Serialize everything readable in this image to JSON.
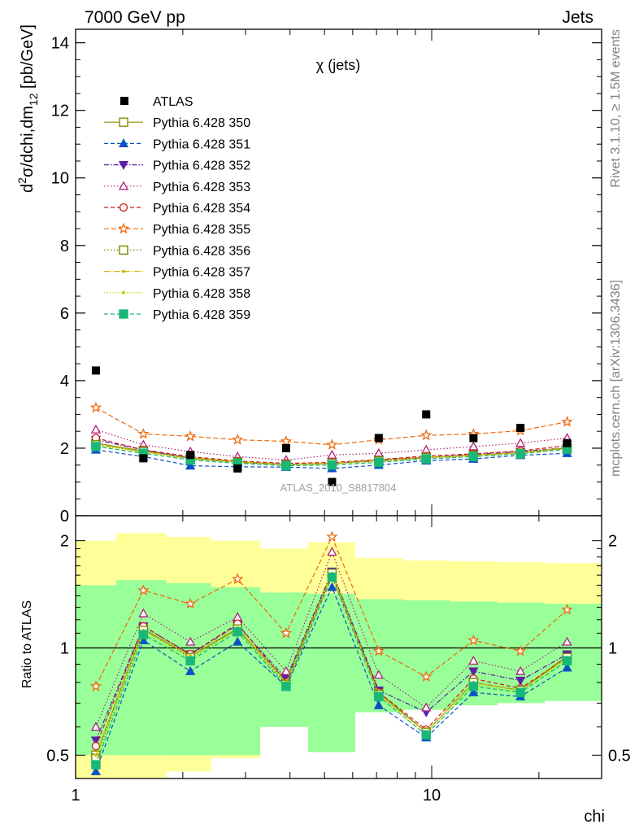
{
  "header": {
    "left": "7000 GeV pp",
    "right": "Jets"
  },
  "side_labels": {
    "rivet": "Rivet 3.1.10, ≥ 1.5M events",
    "mcplots": "mcplots.cern.ch [arXiv:1306.3436]"
  },
  "watermark": "ATLAS_2010_S8817804",
  "chart_data": [
    {
      "type": "scatter",
      "panel": "main",
      "title": "χ (jets)",
      "ylabel_parts": {
        "d": "d",
        "sup": "2",
        "body": "σ/dchi,dm",
        "sub": "12",
        "unit": " [pb/GeV]"
      },
      "x_scale": "log",
      "xlim": [
        1,
        30
      ],
      "ylim": [
        0,
        14.4
      ],
      "yticks": [
        0,
        2,
        4,
        6,
        8,
        10,
        12,
        14
      ],
      "ytick_labels": [
        "0",
        "2",
        "4",
        "6",
        "8",
        "10",
        "12",
        "14"
      ],
      "legend_position": "top-left",
      "x": [
        1.14,
        1.55,
        2.1,
        2.85,
        3.9,
        5.25,
        7.1,
        9.65,
        13.1,
        17.75,
        24.0
      ],
      "data": {
        "name": "ATLAS",
        "color": "#000000",
        "values": [
          4.3,
          1.7,
          1.8,
          1.4,
          2.0,
          1.0,
          2.3,
          3.0,
          2.3,
          2.6,
          2.15
        ]
      },
      "series": [
        {
          "name": "Pythia 6.428 350",
          "color": "#8b8b00",
          "marker": "open-square",
          "dash": "",
          "values": [
            2.15,
            1.92,
            1.72,
            1.6,
            1.52,
            1.55,
            1.66,
            1.73,
            1.79,
            1.87,
            2.0
          ]
        },
        {
          "name": "Pythia 6.428 351",
          "color": "#0b52c4",
          "marker": "filled-triangle-up",
          "dash": "5,3",
          "values": [
            1.95,
            1.75,
            1.48,
            1.45,
            1.44,
            1.4,
            1.5,
            1.63,
            1.68,
            1.79,
            1.85
          ]
        },
        {
          "name": "Pythia 6.428 352",
          "color": "#5b20a8",
          "marker": "filled-triangle-down",
          "dash": "6,2,1.5,2",
          "values": [
            2.25,
            1.95,
            1.7,
            1.58,
            1.52,
            1.55,
            1.63,
            1.72,
            1.82,
            1.9,
            2.02
          ]
        },
        {
          "name": "Pythia 6.428 353",
          "color": "#b0207a",
          "marker": "open-triangle-up",
          "dash": "1.5,2.5",
          "values": [
            2.55,
            2.1,
            1.9,
            1.75,
            1.65,
            1.8,
            1.85,
            1.95,
            2.05,
            2.15,
            2.3
          ]
        },
        {
          "name": "Pythia 6.428 354",
          "color": "#d41616",
          "marker": "open-circle",
          "dash": "5,3",
          "values": [
            2.3,
            1.95,
            1.75,
            1.62,
            1.55,
            1.58,
            1.66,
            1.77,
            1.83,
            1.92,
            2.08
          ]
        },
        {
          "name": "Pythia 6.428 355",
          "color": "#ef6a10",
          "marker": "open-star",
          "dash": "6,3",
          "values": [
            3.2,
            2.42,
            2.35,
            2.25,
            2.2,
            2.1,
            2.25,
            2.38,
            2.42,
            2.52,
            2.78
          ]
        },
        {
          "name": "Pythia 6.428 356",
          "color": "#6f8f00",
          "marker": "open-square",
          "dash": "1.5,2.5",
          "values": [
            2.1,
            1.9,
            1.68,
            1.58,
            1.5,
            1.55,
            1.62,
            1.72,
            1.78,
            1.85,
            2.0
          ]
        },
        {
          "name": "Pythia 6.428 357",
          "color": "#d4b800",
          "marker": "dot",
          "dash": "7,2,1.5,2",
          "values": [
            2.12,
            1.9,
            1.7,
            1.6,
            1.52,
            1.56,
            1.64,
            1.73,
            1.79,
            1.87,
            2.02
          ]
        },
        {
          "name": "Pythia 6.428 358",
          "color": "#b8d800",
          "marker": "dot",
          "dash": "1.5,2",
          "values": [
            2.08,
            1.88,
            1.68,
            1.58,
            1.5,
            1.53,
            1.6,
            1.7,
            1.77,
            1.85,
            1.99
          ]
        },
        {
          "name": "Pythia 6.428 359",
          "color": "#1ab878",
          "marker": "filled-square",
          "dash": "5,3",
          "values": [
            2.05,
            1.85,
            1.65,
            1.55,
            1.48,
            1.5,
            1.58,
            1.68,
            1.75,
            1.83,
            1.97
          ]
        }
      ]
    },
    {
      "type": "scatter",
      "panel": "ratio",
      "ylabel": "Ratio to ATLAS",
      "xlabel": "chi",
      "x_scale": "log",
      "y_scale": "log",
      "xlim": [
        1,
        30
      ],
      "ylim": [
        0.43,
        2.35
      ],
      "xticks": [
        1,
        10
      ],
      "xtick_labels": [
        "1",
        "10"
      ],
      "yticks": [
        0.5,
        1,
        2
      ],
      "ytick_labels": [
        "0.5",
        "1",
        "2"
      ],
      "reference_line": 1,
      "x_bins": [
        1,
        1.3,
        1.8,
        2.4,
        3.3,
        4.5,
        6.1,
        8.3,
        11.3,
        15.3,
        20.8,
        30
      ],
      "band_total": {
        "color": "#ffff99",
        "lower": [
          0.35,
          0.38,
          0.45,
          0.49,
          0.6,
          0.51,
          0.66,
          0.67,
          0.69,
          0.7,
          0.71
        ],
        "upper": [
          2.0,
          2.1,
          2.05,
          2.0,
          1.9,
          1.98,
          1.79,
          1.76,
          1.75,
          1.74,
          1.73
        ]
      },
      "band_stat": {
        "color": "#99ff99",
        "lower": [
          0.5,
          0.5,
          0.5,
          0.5,
          0.6,
          0.51,
          0.66,
          0.67,
          0.69,
          0.7,
          0.71
        ],
        "upper": [
          1.5,
          1.55,
          1.52,
          1.48,
          1.43,
          1.42,
          1.37,
          1.36,
          1.35,
          1.34,
          1.33
        ]
      },
      "series_ratio": [
        [
          0.5,
          1.13,
          0.95,
          1.13,
          0.81,
          1.62,
          0.75,
          0.58,
          0.8,
          0.76,
          0.95
        ],
        [
          0.45,
          1.05,
          0.86,
          1.04,
          0.78,
          1.48,
          0.69,
          0.56,
          0.75,
          0.73,
          0.88
        ],
        [
          0.55,
          1.15,
          0.96,
          1.16,
          0.82,
          1.64,
          0.76,
          0.66,
          0.86,
          0.81,
          0.96
        ],
        [
          0.6,
          1.25,
          1.04,
          1.22,
          0.86,
          1.86,
          0.84,
          0.68,
          0.92,
          0.86,
          1.04
        ],
        [
          0.53,
          1.15,
          0.96,
          1.17,
          0.8,
          1.6,
          0.75,
          0.59,
          0.82,
          0.77,
          0.94
        ],
        [
          0.78,
          1.45,
          1.33,
          1.56,
          1.1,
          2.05,
          0.98,
          0.83,
          1.05,
          0.98,
          1.28
        ],
        [
          0.49,
          1.12,
          0.94,
          1.13,
          0.79,
          1.62,
          0.74,
          0.58,
          0.8,
          0.76,
          0.94
        ],
        [
          0.5,
          1.12,
          0.95,
          1.14,
          0.8,
          1.62,
          0.74,
          0.58,
          0.8,
          0.76,
          0.94
        ],
        [
          0.48,
          1.1,
          0.93,
          1.12,
          0.78,
          1.6,
          0.73,
          0.57,
          0.79,
          0.75,
          0.93
        ],
        [
          0.47,
          1.09,
          0.92,
          1.11,
          0.78,
          1.58,
          0.73,
          0.57,
          0.78,
          0.75,
          0.92
        ]
      ]
    }
  ]
}
